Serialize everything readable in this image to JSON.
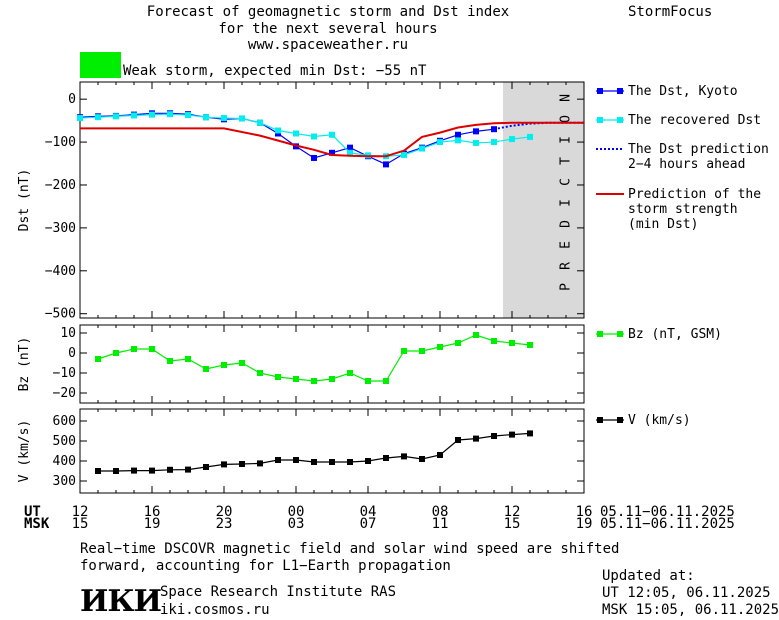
{
  "header": {
    "title_line1": "Forecast of geomagnetic storm and Dst index",
    "title_line2": "for the next several hours",
    "title_line3": "www.spaceweather.ru",
    "brand": "StormFocus",
    "storm_label": "Weak storm, expected min Dst: −55 nT",
    "storm_color": "#00ee00"
  },
  "prediction_label": "PREDICTION",
  "time_axis": {
    "ut_label": "UT",
    "msk_label": "MSK",
    "ut_ticks": [
      "12",
      "16",
      "20",
      "00",
      "04",
      "08",
      "12",
      "16"
    ],
    "msk_ticks": [
      "15",
      "19",
      "23",
      "03",
      "07",
      "11",
      "15",
      "19"
    ],
    "ut_range": "05.11−06.11.2025",
    "msk_range": "05.11−06.11.2025"
  },
  "footer": {
    "note_line1": "Real−time DSCOVR magnetic field and solar wind speed are shifted",
    "note_line2": "forward, accounting for L1−Earth propagation",
    "logo": "ИКИ",
    "institute": "Space Research Institute RAS",
    "site": "iki.cosmos.ru",
    "updated_label": "Updated at:",
    "updated_ut": "UT  12:05, 06.11.2025",
    "updated_msk": "MSK 15:05, 06.11.2025"
  },
  "chart_data": [
    {
      "type": "line",
      "ylabel": "Dst (nT)",
      "ylim": [
        -510,
        40
      ],
      "yticks": [
        0,
        -100,
        -200,
        -300,
        -400,
        -500
      ],
      "x_unit": "hours since 12 UT 05.11.2025",
      "xlim": [
        0,
        28
      ],
      "prediction_region": [
        23.5,
        28
      ],
      "series": [
        {
          "name": "The Dst, Kyoto",
          "color": "#0000ff",
          "marker": "square",
          "x": [
            0,
            1,
            2,
            3,
            4,
            5,
            6,
            7,
            8,
            9,
            10,
            11,
            12,
            13,
            14,
            15,
            16,
            17,
            18,
            19,
            20,
            21,
            22,
            23
          ],
          "y": [
            -42,
            -40,
            -39,
            -36,
            -33,
            -33,
            -35,
            -42,
            -47,
            -45,
            -55,
            -80,
            -110,
            -137,
            -125,
            -113,
            -133,
            -152,
            -127,
            -113,
            -97,
            -83,
            -75,
            -70
          ]
        },
        {
          "name": "The recovered Dst",
          "color": "#00eeee",
          "marker": "square",
          "x": [
            0,
            1,
            2,
            3,
            4,
            5,
            6,
            7,
            8,
            9,
            10,
            11,
            12,
            13,
            14,
            15,
            16,
            17,
            18,
            19,
            20,
            21,
            22,
            23,
            24,
            25
          ],
          "y": [
            -44,
            -42,
            -40,
            -38,
            -36,
            -35,
            -37,
            -42,
            -44,
            -45,
            -55,
            -73,
            -80,
            -87,
            -83,
            -125,
            -131,
            -133,
            -130,
            -115,
            -100,
            -96,
            -102,
            -100,
            -93,
            -88
          ]
        },
        {
          "name": "The Dst prediction\n2−4 hours ahead",
          "color": "#0000ff",
          "style": "dotted",
          "x": [
            23,
            24,
            25,
            26,
            27,
            28
          ],
          "y": [
            -70,
            -62,
            -57,
            -55,
            -55,
            -55
          ]
        },
        {
          "name": "Prediction of the\nstorm strength\n(min Dst)",
          "color": "#dd0000",
          "style": "solid",
          "x": [
            0,
            2,
            4,
            6,
            8,
            10,
            12,
            13,
            14,
            15,
            16,
            17,
            18,
            19,
            20,
            21,
            22,
            23,
            24,
            25,
            26,
            27,
            28
          ],
          "y": [
            -68,
            -68,
            -68,
            -68,
            -68,
            -85,
            -108,
            -118,
            -130,
            -132,
            -133,
            -133,
            -120,
            -88,
            -78,
            -66,
            -60,
            -56,
            -55,
            -55,
            -55,
            -55,
            -55
          ]
        }
      ]
    },
    {
      "type": "line",
      "ylabel": "Bz (nT)",
      "ylim": [
        -25,
        14
      ],
      "yticks": [
        10,
        0,
        -10,
        -20
      ],
      "xlim": [
        0,
        28
      ],
      "series": [
        {
          "name": "Bz (nT, GSM)",
          "color": "#00ee00",
          "marker": "square",
          "x": [
            1,
            2,
            3,
            4,
            5,
            6,
            7,
            8,
            9,
            10,
            11,
            12,
            13,
            14,
            15,
            16,
            17,
            18,
            19,
            20,
            21,
            22,
            23,
            24,
            25
          ],
          "y": [
            -3,
            0,
            2,
            2,
            -4,
            -3,
            -8,
            -6,
            -5,
            -10,
            -12,
            -13,
            -14,
            -13,
            -10,
            -14,
            -14,
            1,
            1,
            3,
            5,
            9,
            6,
            5,
            4
          ]
        }
      ]
    },
    {
      "type": "line",
      "ylabel": "V (km/s)",
      "ylim": [
        240,
        660
      ],
      "yticks": [
        600,
        500,
        400,
        300
      ],
      "xlim": [
        0,
        28
      ],
      "series": [
        {
          "name": "V (km/s)",
          "color": "#000000",
          "marker": "square",
          "x": [
            1,
            2,
            3,
            4,
            5,
            6,
            7,
            8,
            9,
            10,
            11,
            12,
            13,
            14,
            15,
            16,
            17,
            18,
            19,
            20,
            21,
            22,
            23,
            24,
            25
          ],
          "y": [
            350,
            350,
            352,
            352,
            356,
            357,
            370,
            383,
            385,
            388,
            405,
            405,
            395,
            395,
            395,
            400,
            415,
            423,
            410,
            430,
            505,
            512,
            525,
            532,
            538
          ]
        }
      ]
    }
  ]
}
